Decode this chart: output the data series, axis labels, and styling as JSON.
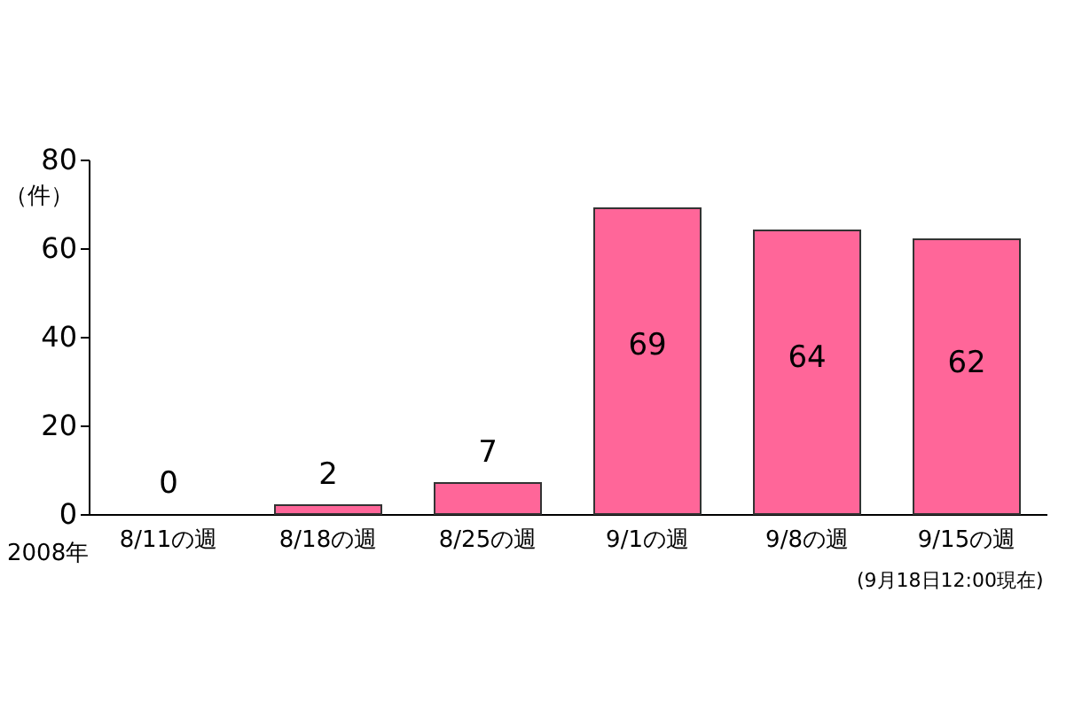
{
  "chart_data": {
    "type": "bar",
    "categories": [
      "8/11の週",
      "8/18の週",
      "8/25の週",
      "9/1の週",
      "9/8の週",
      "9/15の週"
    ],
    "values": [
      0,
      2,
      7,
      69,
      64,
      62
    ],
    "color": "#ff6699",
    "ylabel": "（件）",
    "ylim": [
      0,
      80
    ],
    "yticks": [
      0,
      20,
      40,
      60,
      80
    ],
    "data_labels": true,
    "grid": false,
    "annotations": [
      "2008年",
      "(9月18日12:00現在)"
    ]
  }
}
